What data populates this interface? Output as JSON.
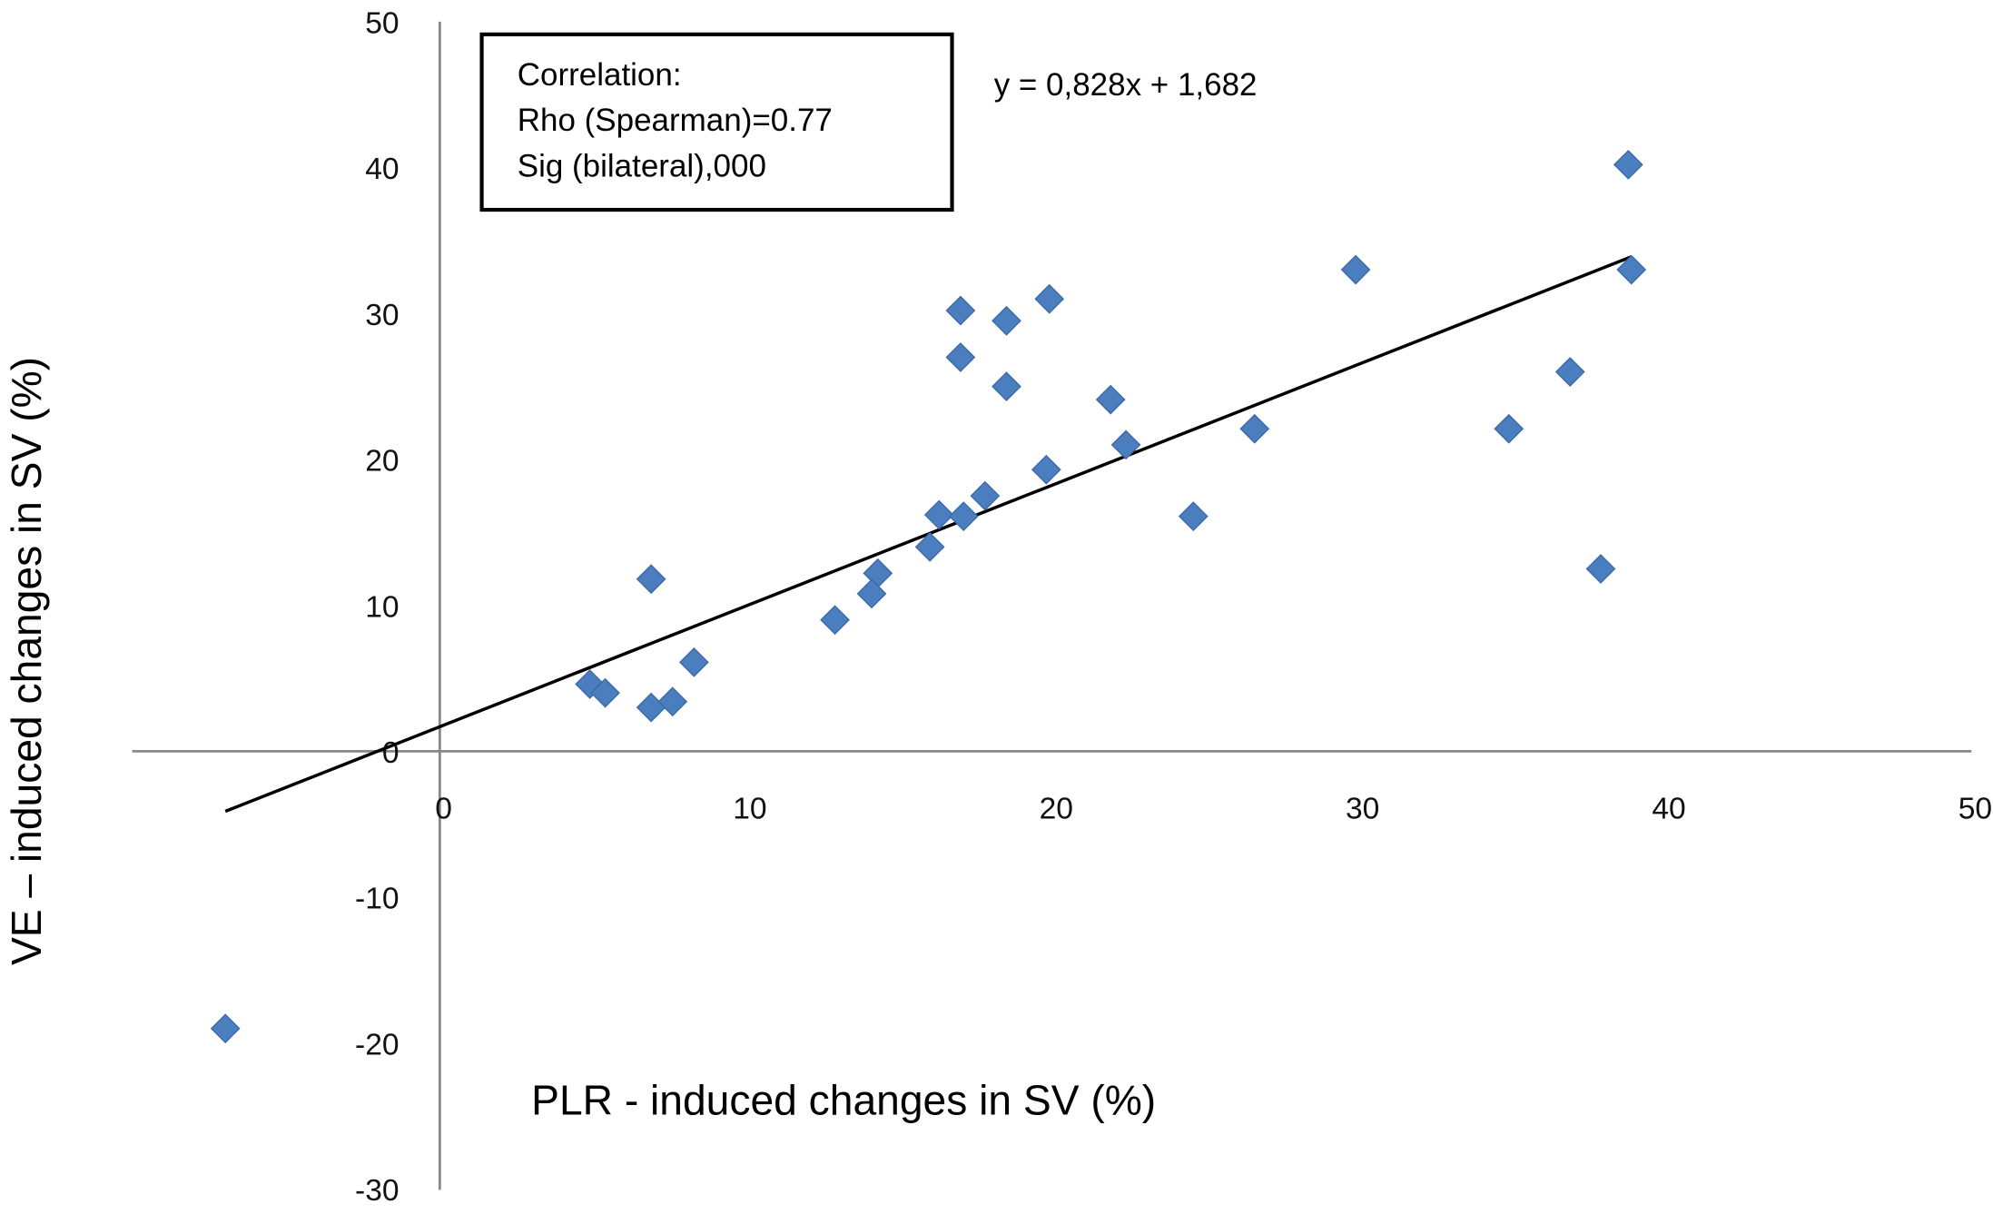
{
  "chart_data": {
    "type": "scatter",
    "xlabel": "PLR - induced changes in SV (%)",
    "ylabel": "VE – induced changes in SV (%)",
    "xlim": [
      -10,
      50
    ],
    "ylim": [
      -30,
      50
    ],
    "x_ticks": [
      "0",
      "10",
      "20",
      "30",
      "40",
      "50"
    ],
    "y_ticks": [
      "50",
      "40",
      "30",
      "20",
      "10",
      "0",
      "-10",
      "-20",
      "-30"
    ],
    "grid": false,
    "marker_color": "#4a7ebf",
    "points": [
      {
        "x": -7.0,
        "y": -19.0
      },
      {
        "x": 4.9,
        "y": 4.6
      },
      {
        "x": 5.4,
        "y": 4.0
      },
      {
        "x": 6.9,
        "y": 3.0
      },
      {
        "x": 7.6,
        "y": 3.4
      },
      {
        "x": 6.9,
        "y": 11.8
      },
      {
        "x": 8.3,
        "y": 6.1
      },
      {
        "x": 12.9,
        "y": 9.0
      },
      {
        "x": 14.3,
        "y": 12.2
      },
      {
        "x": 14.1,
        "y": 10.8
      },
      {
        "x": 16.0,
        "y": 14.0
      },
      {
        "x": 16.3,
        "y": 16.2
      },
      {
        "x": 17.1,
        "y": 16.1
      },
      {
        "x": 17.8,
        "y": 17.5
      },
      {
        "x": 17.0,
        "y": 30.2
      },
      {
        "x": 17.0,
        "y": 27.0
      },
      {
        "x": 18.5,
        "y": 29.5
      },
      {
        "x": 18.5,
        "y": 25.0
      },
      {
        "x": 19.9,
        "y": 31.0
      },
      {
        "x": 19.8,
        "y": 19.3
      },
      {
        "x": 21.9,
        "y": 24.1
      },
      {
        "x": 22.4,
        "y": 21.0
      },
      {
        "x": 24.6,
        "y": 16.1
      },
      {
        "x": 26.6,
        "y": 22.1
      },
      {
        "x": 29.9,
        "y": 33.0
      },
      {
        "x": 34.9,
        "y": 22.1
      },
      {
        "x": 36.9,
        "y": 26.0
      },
      {
        "x": 37.9,
        "y": 12.5
      },
      {
        "x": 38.8,
        "y": 40.2
      },
      {
        "x": 38.9,
        "y": 33.0
      }
    ],
    "trendline": {
      "slope": 0.828,
      "intercept": 1.682,
      "x_range": [
        -7.0,
        38.9
      ],
      "equation": "y = 0,828x + 1,682"
    },
    "annotation": {
      "lines": [
        "Correlation:",
        "Rho (Spearman)=0.77",
        "Sig (bilateral),000"
      ]
    }
  }
}
